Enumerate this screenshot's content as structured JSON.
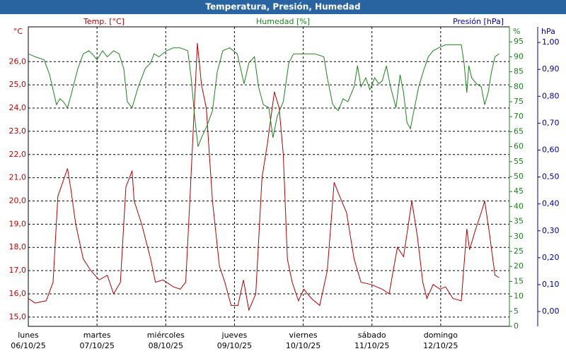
{
  "chart_data": {
    "type": "line",
    "title": "Temperatura, Presión, Humedad",
    "ylabel": "°C",
    "y2label": "%",
    "y3label": "hPa",
    "y3_title": "Presión [hPa]",
    "y3_color": "#000099",
    "xlim": [
      0,
      7
    ],
    "xticks": [
      {
        "value": 0,
        "label": "06/10/25",
        "day": "lunes"
      },
      {
        "value": 1,
        "label": "07/10/25",
        "day": "martes"
      },
      {
        "value": 2,
        "label": "08/10/25",
        "day": "miércoles"
      },
      {
        "value": 3,
        "label": "09/10/25",
        "day": "jueves"
      },
      {
        "value": 4,
        "label": "10/10/25",
        "day": "viernes"
      },
      {
        "value": 5,
        "label": "11/10/25",
        "day": "sábado"
      },
      {
        "value": 6,
        "label": "12/10/25",
        "day": "domingo"
      }
    ],
    "ylim": [
      14.6,
      27.5
    ],
    "yticks": [
      {
        "value": 15,
        "label": "15,0"
      },
      {
        "value": 16,
        "label": "16,0"
      },
      {
        "value": 17,
        "label": "17,0"
      },
      {
        "value": 18,
        "label": "18,0"
      },
      {
        "value": 19,
        "label": "19,0"
      },
      {
        "value": 20,
        "label": "20,0"
      },
      {
        "value": 21,
        "label": "21,0"
      },
      {
        "value": 22,
        "label": "22,0"
      },
      {
        "value": 23,
        "label": "23,0"
      },
      {
        "value": 24,
        "label": "24,0"
      },
      {
        "value": 25,
        "label": "25,0"
      },
      {
        "value": 26,
        "label": "26,0"
      }
    ],
    "y2lim": [
      0,
      100
    ],
    "y2ticks": [
      0,
      5,
      10,
      15,
      20,
      25,
      30,
      35,
      40,
      45,
      50,
      55,
      60,
      65,
      70,
      75,
      80,
      85,
      90,
      95
    ],
    "y3lim": [
      -0.055,
      1.058
    ],
    "y3ticks": [
      {
        "value": 0,
        "label": "0,00"
      },
      {
        "value": 0.1,
        "label": "0,10"
      },
      {
        "value": 0.2,
        "label": "0,20"
      },
      {
        "value": 0.3,
        "label": "0,30"
      },
      {
        "value": 0.4,
        "label": "0,40"
      },
      {
        "value": 0.5,
        "label": "0,50"
      },
      {
        "value": 0.6,
        "label": "0,60"
      },
      {
        "value": 0.7,
        "label": "0,70"
      },
      {
        "value": 0.8,
        "label": "0,80"
      },
      {
        "value": 0.9,
        "label": "0,90"
      },
      {
        "value": 1,
        "label": "1,00"
      }
    ],
    "grid": true,
    "series": [
      {
        "name": "Temp. [°C]",
        "color": "#b00000",
        "axis": "y",
        "x": [
          0,
          0.1,
          0.26,
          0.36,
          0.43,
          0.57,
          0.62,
          0.69,
          0.8,
          0.91,
          1.03,
          1.15,
          1.24,
          1.34,
          1.42,
          1.51,
          1.54,
          1.65,
          1.78,
          1.85,
          1.96,
          2.11,
          2.21,
          2.29,
          2.35,
          2.46,
          2.52,
          2.59,
          2.68,
          2.78,
          2.86,
          2.95,
          3.05,
          3.13,
          3.21,
          3.31,
          3.4,
          3.48,
          3.58,
          3.65,
          3.71,
          3.77,
          3.84,
          3.93,
          4.01,
          4.12,
          4.24,
          4.35,
          4.45,
          4.53,
          4.63,
          4.74,
          4.84,
          4.99,
          5.15,
          5.25,
          5.31,
          5.37,
          5.46,
          5.58,
          5.66,
          5.74,
          5.8,
          5.89,
          5.99,
          6.07,
          6.18,
          6.3,
          6.38,
          6.42,
          6.51,
          6.59,
          6.64,
          6.71,
          6.79,
          6.85
        ],
        "values": [
          15.8,
          15.6,
          15.7,
          16.5,
          20.2,
          21.4,
          20.5,
          19,
          17.5,
          17,
          16.6,
          16.8,
          16.0,
          16.5,
          20.6,
          21.3,
          20,
          19,
          17.5,
          16.5,
          16.6,
          16.3,
          16.2,
          16.5,
          20,
          26.8,
          25,
          24,
          20,
          17.2,
          16.5,
          15.5,
          15.5,
          16.6,
          15.3,
          16,
          21,
          22.5,
          24.7,
          24,
          22,
          17.5,
          16.5,
          15.7,
          16.2,
          15.8,
          15.5,
          17,
          20.8,
          20.2,
          19.5,
          17.5,
          16.5,
          16.4,
          16.2,
          16.0,
          17,
          18,
          17.6,
          20,
          18.5,
          16.5,
          15.8,
          16.4,
          16.2,
          16.3,
          15.8,
          15.7,
          18.8,
          17.9,
          18.8,
          19.5,
          20,
          18.6,
          16.8,
          16.7
        ]
      },
      {
        "name": "Humedad [%]",
        "color": "#208020",
        "axis": "y2",
        "x": [
          0,
          0.1,
          0.23,
          0.31,
          0.41,
          0.46,
          0.51,
          0.57,
          0.62,
          0.72,
          0.8,
          0.88,
          0.93,
          1.0,
          1.08,
          1.15,
          1.24,
          1.32,
          1.39,
          1.44,
          1.51,
          1.6,
          1.7,
          1.78,
          1.83,
          1.9,
          2.01,
          2.11,
          2.21,
          2.32,
          2.37,
          2.42,
          2.47,
          2.52,
          2.6,
          2.68,
          2.75,
          2.83,
          2.93,
          3.04,
          3.14,
          3.21,
          3.29,
          3.35,
          3.42,
          3.5,
          3.56,
          3.62,
          3.71,
          3.79,
          3.86,
          3.96,
          4.07,
          4.17,
          4.3,
          4.35,
          4.43,
          4.51,
          4.58,
          4.65,
          4.74,
          4.79,
          4.84,
          4.91,
          4.97,
          5.04,
          5.1,
          5.15,
          5.21,
          5.27,
          5.35,
          5.41,
          5.46,
          5.51,
          5.56,
          5.61,
          5.68,
          5.76,
          5.82,
          5.89,
          5.97,
          6.07,
          6.18,
          6.3,
          6.34,
          6.38,
          6.41,
          6.45,
          6.52,
          6.59,
          6.64,
          6.69,
          6.74,
          6.79,
          6.85
        ],
        "values": [
          91,
          90,
          89,
          84,
          74,
          76,
          75,
          73,
          77,
          86,
          91,
          92,
          91,
          89,
          92,
          90,
          92,
          91,
          86,
          75,
          73,
          80,
          86,
          88,
          91,
          90,
          92,
          93,
          93,
          92,
          83,
          70,
          60,
          63,
          67,
          72,
          85,
          92,
          93,
          91,
          81,
          88,
          90,
          80,
          74,
          73,
          63,
          70,
          75,
          88,
          91,
          91,
          91,
          91,
          90,
          83,
          74,
          72,
          76,
          75,
          80,
          87,
          80,
          83,
          79,
          83,
          81,
          82,
          87,
          80,
          73,
          84,
          78,
          68,
          66,
          72,
          80,
          86,
          90,
          92,
          93,
          94,
          94,
          94,
          88,
          78,
          87,
          83,
          81,
          80,
          74,
          78,
          85,
          90,
          91
        ]
      }
    ]
  }
}
